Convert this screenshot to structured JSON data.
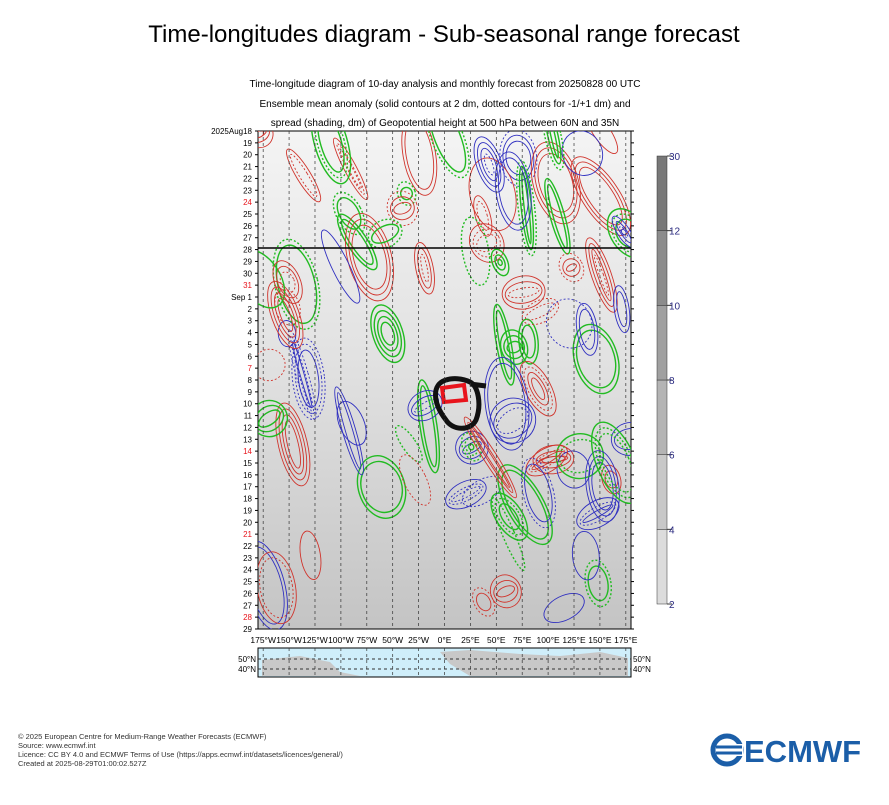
{
  "chart_data": {
    "type": "hovmoller",
    "title": "Time-longitudes diagram - Sub-seasonal range forecast",
    "subtitle": [
      "Time-longitude diagram of 10-day analysis and monthly forecast from 20250828 00 UTC",
      "Ensemble mean anomaly (solid contours at 2 dm, dotted contours for -1/+1 dm) and",
      "spread (shading, dm) of Geopotential height at 500 hPa between 60N and 35N"
    ],
    "categories": [
      "2025Aug18",
      "19",
      "20",
      "21",
      "22",
      "23",
      "24",
      "25",
      "26",
      "27",
      "28",
      "29",
      "30",
      "31",
      "Sep 1",
      "2",
      "3",
      "4",
      "5",
      "6",
      "7",
      "8",
      "9",
      "10",
      "11",
      "12",
      "13",
      "14",
      "15",
      "16",
      "17",
      "18",
      "19",
      "20",
      "21",
      "22",
      "23",
      "24",
      "25",
      "26",
      "27",
      "28",
      "29"
    ],
    "highlight": [
      6,
      13,
      20,
      27,
      34,
      41
    ],
    "highlight_color": "#e8141c",
    "xlim": [
      -180,
      180
    ],
    "xticks": [
      {
        "value": -175,
        "label": "175°W"
      },
      {
        "value": -150,
        "label": "150°W"
      },
      {
        "value": -125,
        "label": "125°W"
      },
      {
        "value": -100,
        "label": "100°W"
      },
      {
        "value": -75,
        "label": "75°W"
      },
      {
        "value": -50,
        "label": "50°W"
      },
      {
        "value": -25,
        "label": "25°W"
      },
      {
        "value": 0,
        "label": "0°E"
      },
      {
        "value": 25,
        "label": "25°E"
      },
      {
        "value": 50,
        "label": "50°E"
      },
      {
        "value": 75,
        "label": "75°E"
      },
      {
        "value": 100,
        "label": "100°E"
      },
      {
        "value": 125,
        "label": "125°E"
      },
      {
        "value": 150,
        "label": "150°E"
      },
      {
        "value": 175,
        "label": "175°E"
      }
    ],
    "map_labels": [
      "50°N",
      "40°N"
    ],
    "colorbar_ticks": [
      2,
      4,
      6,
      8,
      10,
      12,
      30
    ],
    "footer": [
      "© 2025 European Centre for Medium-Range Weather Forecasts (ECMWF)",
      "Source: www.ecmwf.int",
      "Licence: CC BY 4.0 and ECMWF Terms of Use (https://apps.ecmwf.int/datasets/licences/general/)",
      "Created at 2025-08-29T01:00:02.527Z"
    ],
    "logo": "ECMWF"
  }
}
